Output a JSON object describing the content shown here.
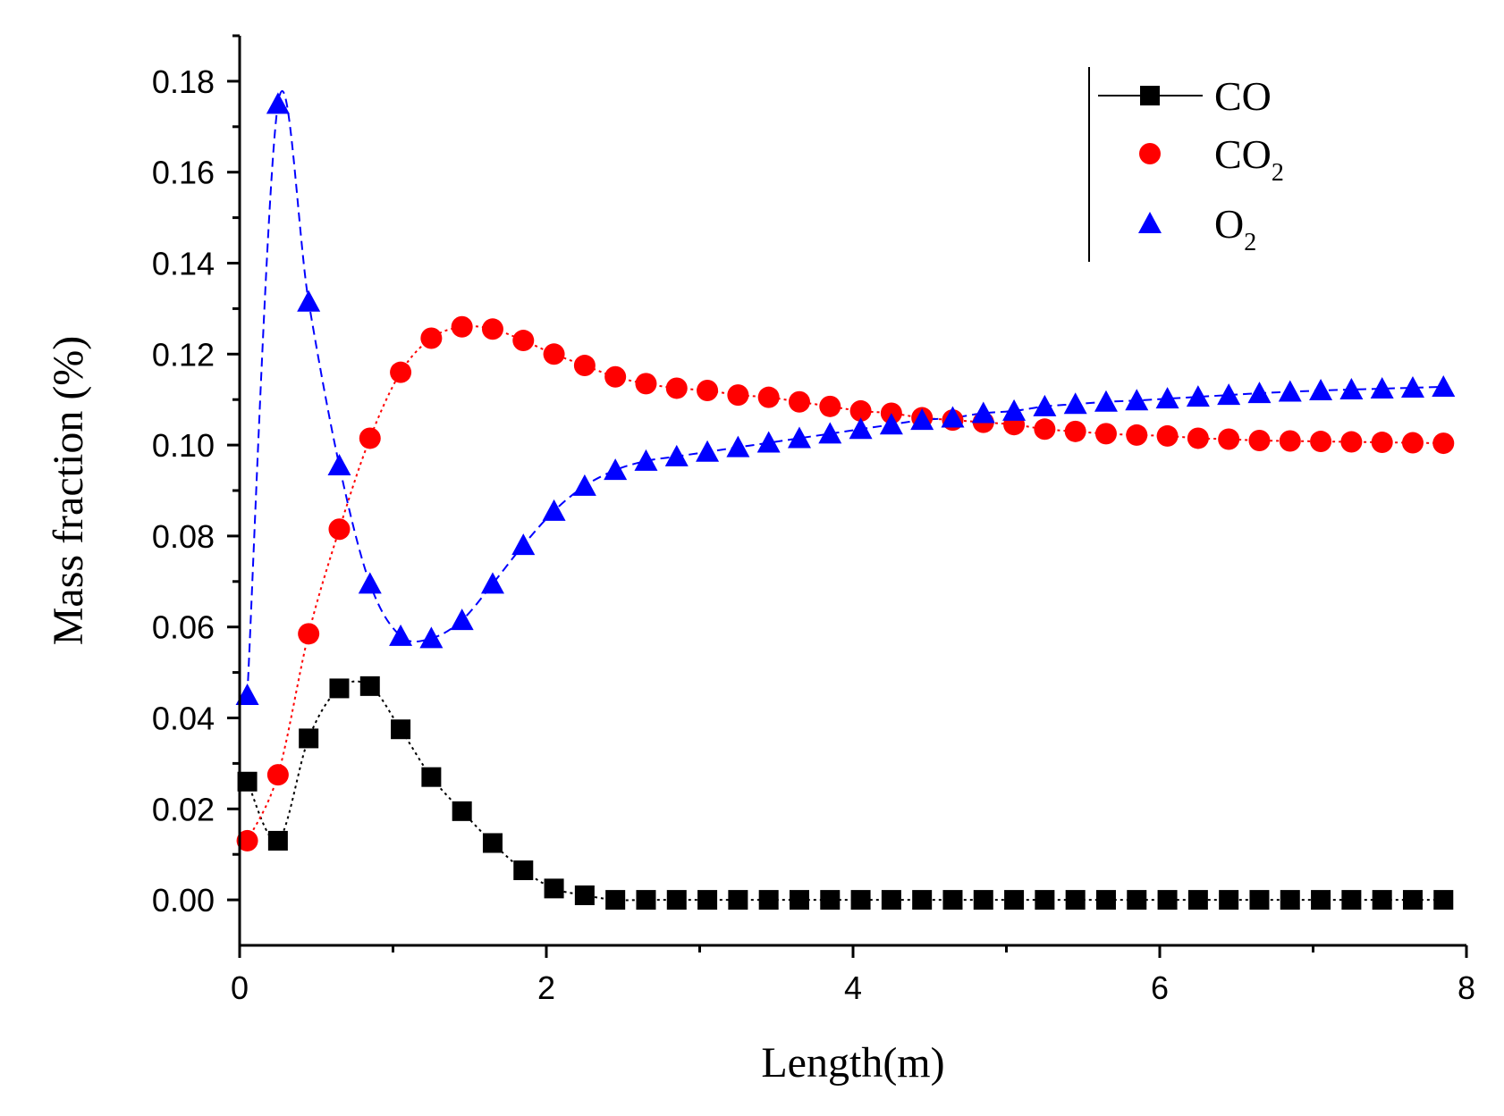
{
  "chart_data": {
    "type": "line",
    "xlabel": "Length(m)",
    "ylabel": "Mass fraction (%)",
    "xlim": [
      0,
      8
    ],
    "ylim": [
      -0.01,
      0.19
    ],
    "x_ticks": [
      "0",
      "2",
      "4",
      "6",
      "8"
    ],
    "y_ticks": [
      "0.00",
      "0.02",
      "0.04",
      "0.06",
      "0.08",
      "0.10",
      "0.12",
      "0.14",
      "0.16",
      "0.18"
    ],
    "grid": false,
    "legend_position": "top-right",
    "series": [
      {
        "name": "CO",
        "legend_main": "CO",
        "legend_sub": "",
        "marker": "square",
        "color": "#000000",
        "line_style": "dotted",
        "x": [
          0.05,
          0.25,
          0.45,
          0.65,
          0.85,
          1.05,
          1.25,
          1.45,
          1.65,
          1.85,
          2.05,
          2.25,
          2.45,
          2.65,
          2.85,
          3.05,
          3.25,
          3.45,
          3.65,
          3.85,
          4.05,
          4.25,
          4.45,
          4.65,
          4.85,
          5.05,
          5.25,
          5.45,
          5.65,
          5.85,
          6.05,
          6.25,
          6.45,
          6.65,
          6.85,
          7.05,
          7.25,
          7.45,
          7.65,
          7.85
        ],
        "y": [
          0.026,
          0.013,
          0.0355,
          0.0465,
          0.047,
          0.0375,
          0.027,
          0.0195,
          0.0125,
          0.0065,
          0.0025,
          0.001,
          0.0,
          0.0,
          0.0,
          0.0,
          0.0,
          0.0,
          0.0,
          0.0,
          0.0,
          0.0,
          0.0,
          0.0,
          0.0,
          0.0,
          0.0,
          0.0,
          0.0,
          0.0,
          0.0,
          0.0,
          0.0,
          0.0,
          0.0,
          0.0,
          0.0,
          0.0,
          0.0,
          0.0
        ]
      },
      {
        "name": "CO2",
        "legend_main": "CO",
        "legend_sub": "2",
        "marker": "circle",
        "color": "#ff0000",
        "line_style": "dotted",
        "x": [
          0.05,
          0.25,
          0.45,
          0.65,
          0.85,
          1.05,
          1.25,
          1.45,
          1.65,
          1.85,
          2.05,
          2.25,
          2.45,
          2.65,
          2.85,
          3.05,
          3.25,
          3.45,
          3.65,
          3.85,
          4.05,
          4.25,
          4.45,
          4.65,
          4.85,
          5.05,
          5.25,
          5.45,
          5.65,
          5.85,
          6.05,
          6.25,
          6.45,
          6.65,
          6.85,
          7.05,
          7.25,
          7.45,
          7.65,
          7.85
        ],
        "y": [
          0.013,
          0.0275,
          0.0585,
          0.0815,
          0.1015,
          0.116,
          0.1235,
          0.126,
          0.1255,
          0.123,
          0.12,
          0.1175,
          0.115,
          0.1135,
          0.1125,
          0.112,
          0.111,
          0.1105,
          0.1095,
          0.1085,
          0.1075,
          0.107,
          0.106,
          0.1055,
          0.105,
          0.1045,
          0.1035,
          0.103,
          0.1025,
          0.1022,
          0.102,
          0.1015,
          0.1013,
          0.101,
          0.1009,
          0.1008,
          0.1007,
          0.1006,
          0.1005,
          0.1004
        ]
      },
      {
        "name": "O2",
        "legend_main": "O",
        "legend_sub": "2",
        "marker": "triangle",
        "color": "#0000ff",
        "line_style": "dashed",
        "x": [
          0.05,
          0.25,
          0.45,
          0.65,
          0.85,
          1.05,
          1.25,
          1.45,
          1.65,
          1.85,
          2.05,
          2.25,
          2.45,
          2.65,
          2.85,
          3.05,
          3.25,
          3.45,
          3.65,
          3.85,
          4.05,
          4.25,
          4.45,
          4.65,
          4.85,
          5.05,
          5.25,
          5.45,
          5.65,
          5.85,
          6.05,
          6.25,
          6.45,
          6.65,
          6.85,
          7.05,
          7.25,
          7.45,
          7.65,
          7.85
        ],
        "y": [
          0.045,
          0.175,
          0.1315,
          0.0955,
          0.0695,
          0.058,
          0.0575,
          0.0615,
          0.0695,
          0.078,
          0.0855,
          0.091,
          0.0945,
          0.0965,
          0.0975,
          0.0985,
          0.0995,
          0.1005,
          0.1015,
          0.1025,
          0.1035,
          0.1045,
          0.1055,
          0.106,
          0.107,
          0.1075,
          0.1085,
          0.109,
          0.1095,
          0.1098,
          0.1102,
          0.1106,
          0.111,
          0.1114,
          0.1117,
          0.112,
          0.1122,
          0.1124,
          0.1126,
          0.1128
        ]
      }
    ]
  }
}
